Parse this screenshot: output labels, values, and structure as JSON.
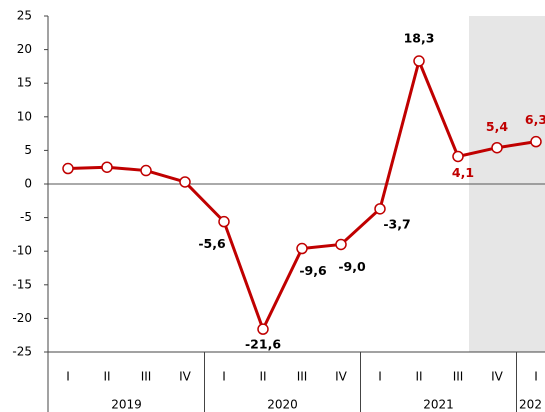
{
  "chart_data": {
    "type": "line",
    "categories": [
      "I",
      "II",
      "III",
      "IV",
      "I",
      "II",
      "III",
      "IV",
      "I",
      "II",
      "III",
      "IV",
      "I"
    ],
    "groups": [
      {
        "label": "2019",
        "span": 4
      },
      {
        "label": "2020",
        "span": 4
      },
      {
        "label": "2021",
        "span": 4
      },
      {
        "label": "202",
        "span": 1
      }
    ],
    "series": [
      {
        "color": "#c00000",
        "values": [
          2.3,
          2.5,
          2.0,
          0.3,
          -5.6,
          -21.6,
          -9.6,
          -9.0,
          -3.7,
          18.3,
          4.1,
          5.4,
          6.3
        ],
        "value_labels": [
          null,
          null,
          null,
          null,
          "-5,6",
          "-21,6",
          "-9,6",
          "-9,0",
          "-3,7",
          "18,3",
          "4,1",
          "5,4",
          "6,3"
        ]
      }
    ],
    "ylim": [
      -25,
      25
    ],
    "yticks": [
      -25,
      -20,
      -15,
      -10,
      -5,
      0,
      5,
      10,
      15,
      20,
      25
    ],
    "highlight_from": 11,
    "highlight_color": "#e6e6e6",
    "highlight_label_color": "#c00000"
  }
}
